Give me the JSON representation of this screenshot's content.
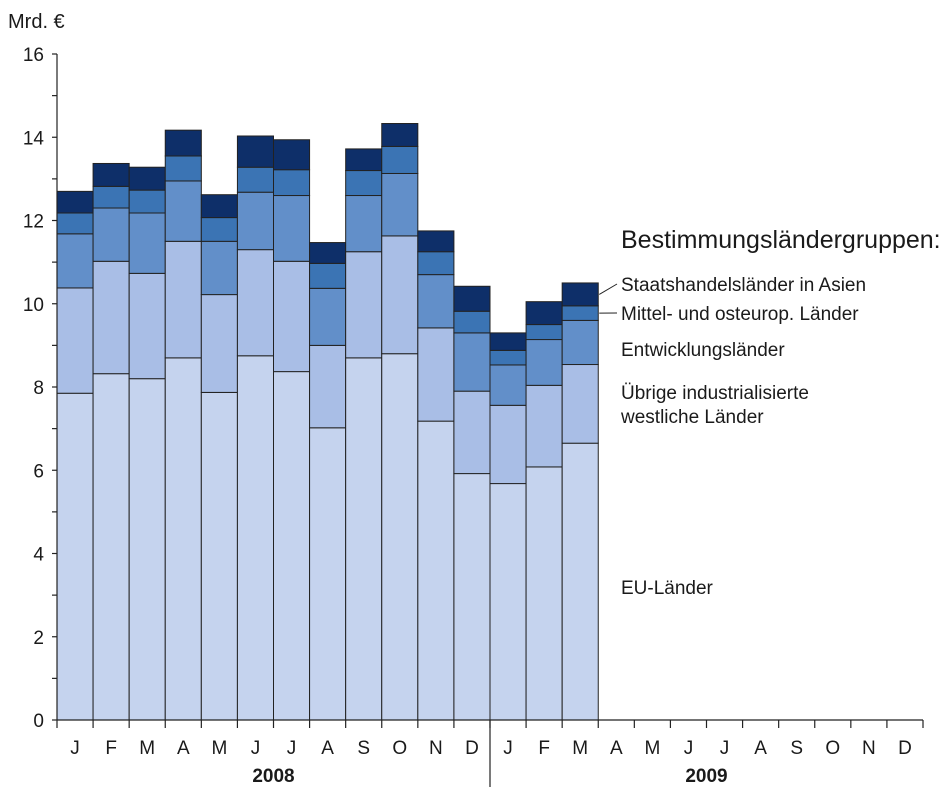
{
  "chart_data": {
    "type": "bar",
    "stacked": true,
    "ylabel": "Mrd. €",
    "ylim": [
      0,
      16
    ],
    "yticks": [
      0,
      2,
      4,
      6,
      8,
      10,
      12,
      14,
      16
    ],
    "grid": false,
    "legend_title": "Bestimmungsländergruppen:",
    "legend_placement": "right",
    "years": [
      {
        "label": "2008",
        "months": [
          "J",
          "F",
          "M",
          "A",
          "M",
          "J",
          "J",
          "A",
          "S",
          "O",
          "N",
          "D"
        ]
      },
      {
        "label": "2009",
        "months": [
          "J",
          "F",
          "M",
          "A",
          "M",
          "J",
          "J",
          "A",
          "S",
          "O",
          "N",
          "D"
        ]
      }
    ],
    "series": [
      {
        "name": "EU-Länder",
        "color": "#c5d3ee",
        "values": [
          7.85,
          8.32,
          8.2,
          8.7,
          7.87,
          8.75,
          8.37,
          7.02,
          8.7,
          8.8,
          7.18,
          5.92,
          5.68,
          6.08,
          6.65
        ]
      },
      {
        "name": "Übrige industrialisierte westliche Länder",
        "color": "#a9bee6",
        "values": [
          2.53,
          2.7,
          2.53,
          2.8,
          2.35,
          2.55,
          2.65,
          1.98,
          2.55,
          2.83,
          2.24,
          1.98,
          1.88,
          1.96,
          1.89
        ]
      },
      {
        "name": "Entwicklungsländer",
        "color": "#628fc9",
        "values": [
          1.3,
          1.28,
          1.45,
          1.45,
          1.28,
          1.38,
          1.58,
          1.37,
          1.35,
          1.5,
          1.28,
          1.4,
          0.97,
          1.1,
          1.06
        ]
      },
      {
        "name": "Mittel- und osteurop. Länder",
        "color": "#3b74b4",
        "values": [
          0.5,
          0.52,
          0.55,
          0.6,
          0.57,
          0.6,
          0.62,
          0.6,
          0.6,
          0.65,
          0.55,
          0.52,
          0.35,
          0.36,
          0.35
        ]
      },
      {
        "name": "Staatshandelsländer in Asien",
        "color": "#0e2f69",
        "values": [
          0.52,
          0.55,
          0.55,
          0.62,
          0.55,
          0.75,
          0.72,
          0.5,
          0.52,
          0.55,
          0.5,
          0.6,
          0.42,
          0.55,
          0.55
        ]
      }
    ]
  }
}
